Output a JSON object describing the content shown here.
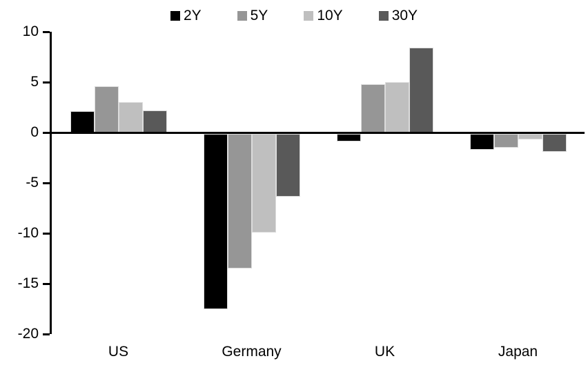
{
  "chart_data": {
    "type": "bar",
    "title": "",
    "xlabel": "",
    "ylabel": "",
    "categories": [
      "US",
      "Germany",
      "UK",
      "Japan"
    ],
    "series": [
      {
        "name": "2Y",
        "color": "#000000",
        "values": [
          2.1,
          -17.4,
          -0.8,
          -1.6
        ]
      },
      {
        "name": "5Y",
        "color": "#969696",
        "values": [
          4.6,
          -13.4,
          4.8,
          -1.4
        ]
      },
      {
        "name": "10Y",
        "color": "#bfbfbf",
        "values": [
          3.0,
          -9.8,
          5.0,
          -0.6
        ]
      },
      {
        "name": "30Y",
        "color": "#595959",
        "values": [
          2.2,
          -6.3,
          8.4,
          -1.8
        ]
      }
    ],
    "ylim": [
      -20,
      10
    ],
    "yticks": [
      10,
      5,
      0,
      -5,
      -10,
      -15,
      -20
    ],
    "legend_position": "top",
    "grid": false,
    "axis_color": "#000000",
    "background_color": "#ffffff"
  }
}
